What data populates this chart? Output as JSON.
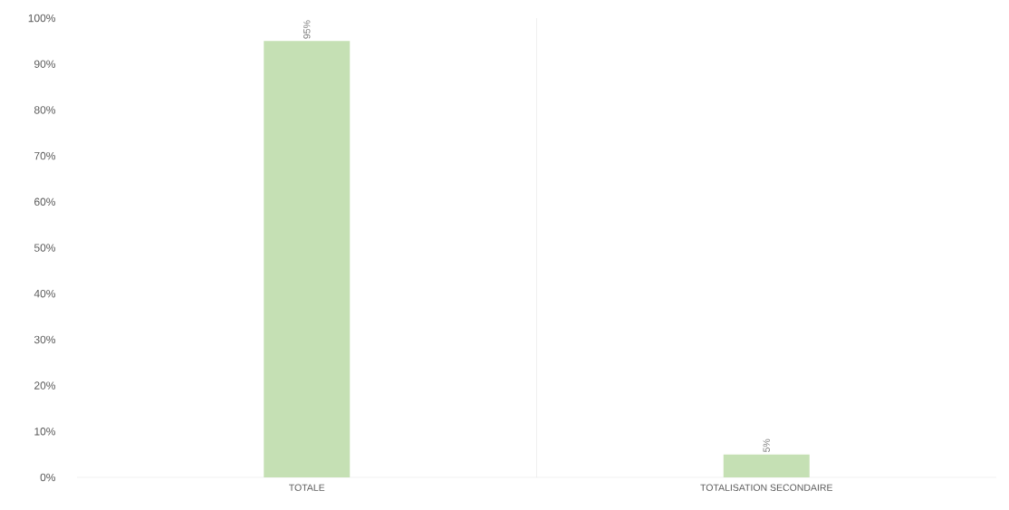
{
  "chart_data": {
    "type": "bar",
    "categories": [
      "TOTALE",
      "TOTALISATION SECONDAIRE"
    ],
    "values": [
      95,
      5
    ],
    "color": "#c5e0b4",
    "value_labels": [
      "95%",
      "5%"
    ],
    "ylim": [
      0,
      100
    ],
    "yticks": [
      {
        "value": 0,
        "label": "0%"
      },
      {
        "value": 10,
        "label": "10%"
      },
      {
        "value": 20,
        "label": "20%"
      },
      {
        "value": 30,
        "label": "30%"
      },
      {
        "value": 40,
        "label": "40%"
      },
      {
        "value": 50,
        "label": "50%"
      },
      {
        "value": 60,
        "label": "60%"
      },
      {
        "value": 70,
        "label": "70%"
      },
      {
        "value": 80,
        "label": "80%"
      },
      {
        "value": 90,
        "label": "90%"
      },
      {
        "value": 100,
        "label": "100%"
      }
    ],
    "grid": "x"
  }
}
